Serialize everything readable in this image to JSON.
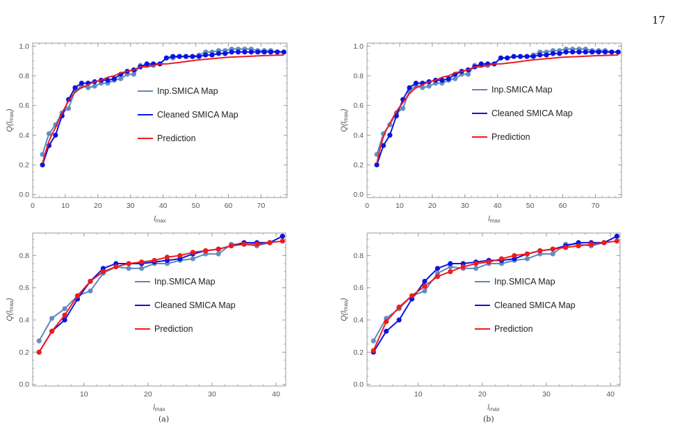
{
  "page": {
    "number": "17"
  },
  "caption": {
    "left_mark": "(a)",
    "right_mark": "(b)"
  },
  "colors": {
    "inp": "#5b86c0",
    "cleaned": "#0a14e0",
    "prediction": "#ef1b1b",
    "frame": "#9a9a9a"
  },
  "chart_data": [
    {
      "type": "line",
      "xlabel": "l",
      "xlabel_sub": "max",
      "ylabel": "Q(l",
      "ylabel_sub": "max",
      "ylabel_close": ")",
      "xlim": [
        0,
        78
      ],
      "ylim": [
        -0.02,
        1.02
      ],
      "xticks": [
        0,
        10,
        20,
        30,
        40,
        50,
        60,
        70
      ],
      "yticks": [
        0.0,
        0.2,
        0.4,
        0.6,
        0.8,
        1.0
      ],
      "ytick_labels": [
        "0.0",
        "0.2",
        "0.4",
        "0.6",
        "0.8",
        "1.0"
      ],
      "legend_position": "center-right",
      "markers": "points",
      "series": [
        {
          "name": "Inp.SMICA Map",
          "color_key": "inp",
          "x": [
            3,
            5,
            7,
            9,
            11,
            13,
            15,
            17,
            19,
            21,
            23,
            25,
            27,
            29,
            31,
            33,
            35,
            37,
            39,
            41,
            43,
            45,
            47,
            49,
            51,
            53,
            55,
            57,
            59,
            61,
            63,
            65,
            67,
            69,
            71,
            73,
            75,
            77
          ],
          "y": [
            0.27,
            0.41,
            0.47,
            0.55,
            0.58,
            0.7,
            0.73,
            0.72,
            0.73,
            0.75,
            0.75,
            0.77,
            0.78,
            0.81,
            0.81,
            0.87,
            0.87,
            0.87,
            0.88,
            0.92,
            0.92,
            0.93,
            0.93,
            0.93,
            0.94,
            0.96,
            0.96,
            0.97,
            0.97,
            0.98,
            0.98,
            0.98,
            0.98,
            0.97,
            0.97,
            0.97,
            0.96,
            0.96
          ]
        },
        {
          "name": "Cleaned SMICA Map",
          "color_key": "cleaned",
          "x": [
            3,
            5,
            7,
            9,
            11,
            13,
            15,
            17,
            19,
            21,
            23,
            25,
            27,
            29,
            31,
            33,
            35,
            37,
            39,
            41,
            43,
            45,
            47,
            49,
            51,
            53,
            55,
            57,
            59,
            61,
            63,
            65,
            67,
            69,
            71,
            73,
            75,
            77
          ],
          "y": [
            0.2,
            0.33,
            0.4,
            0.53,
            0.64,
            0.72,
            0.75,
            0.75,
            0.76,
            0.77,
            0.77,
            0.78,
            0.81,
            0.83,
            0.84,
            0.86,
            0.88,
            0.88,
            0.88,
            0.92,
            0.93,
            0.93,
            0.93,
            0.93,
            0.93,
            0.94,
            0.94,
            0.95,
            0.95,
            0.96,
            0.96,
            0.96,
            0.96,
            0.96,
            0.96,
            0.96,
            0.96,
            0.96
          ]
        },
        {
          "name": "Prediction",
          "color_key": "prediction",
          "markers": false,
          "x": [
            3,
            4,
            5,
            6,
            7,
            8,
            9,
            10,
            11,
            12,
            13,
            15,
            17,
            19,
            21,
            23,
            25,
            27,
            29,
            31,
            33,
            35,
            37,
            39,
            41,
            45,
            50,
            55,
            60,
            65,
            70,
            77
          ],
          "y": [
            0.21,
            0.29,
            0.36,
            0.41,
            0.45,
            0.5,
            0.55,
            0.59,
            0.63,
            0.66,
            0.69,
            0.72,
            0.74,
            0.76,
            0.77,
            0.79,
            0.8,
            0.82,
            0.83,
            0.84,
            0.86,
            0.86,
            0.87,
            0.88,
            0.88,
            0.89,
            0.905,
            0.915,
            0.925,
            0.93,
            0.935,
            0.94
          ]
        }
      ]
    },
    {
      "type": "line",
      "xlabel": "l",
      "xlabel_sub": "max",
      "ylabel": "Q(l",
      "ylabel_sub": "max",
      "ylabel_close": ")",
      "xlim": [
        0,
        78
      ],
      "ylim": [
        -0.02,
        1.02
      ],
      "xticks": [
        0,
        10,
        20,
        30,
        40,
        50,
        60,
        70
      ],
      "yticks": [
        0.0,
        0.2,
        0.4,
        0.6,
        0.8,
        1.0
      ],
      "ytick_labels": [
        "0.0",
        "0.2",
        "0.4",
        "0.6",
        "0.8",
        "1.0"
      ],
      "legend_position": "center-right",
      "markers": "points",
      "series": [
        {
          "name": "Inp.SMICA Map",
          "color_key": "inp",
          "x": [
            3,
            5,
            7,
            9,
            11,
            13,
            15,
            17,
            19,
            21,
            23,
            25,
            27,
            29,
            31,
            33,
            35,
            37,
            39,
            41,
            43,
            45,
            47,
            49,
            51,
            53,
            55,
            57,
            59,
            61,
            63,
            65,
            67,
            69,
            71,
            73,
            75,
            77
          ],
          "y": [
            0.27,
            0.41,
            0.47,
            0.55,
            0.58,
            0.7,
            0.73,
            0.72,
            0.73,
            0.75,
            0.75,
            0.77,
            0.78,
            0.81,
            0.81,
            0.87,
            0.87,
            0.87,
            0.88,
            0.92,
            0.92,
            0.93,
            0.93,
            0.93,
            0.94,
            0.96,
            0.96,
            0.97,
            0.97,
            0.98,
            0.98,
            0.98,
            0.98,
            0.97,
            0.97,
            0.97,
            0.96,
            0.96
          ]
        },
        {
          "name": "Cleaned SMICA Map",
          "color_key": "cleaned",
          "x": [
            3,
            5,
            7,
            9,
            11,
            13,
            15,
            17,
            19,
            21,
            23,
            25,
            27,
            29,
            31,
            33,
            35,
            37,
            39,
            41,
            43,
            45,
            47,
            49,
            51,
            53,
            55,
            57,
            59,
            61,
            63,
            65,
            67,
            69,
            71,
            73,
            75,
            77
          ],
          "y": [
            0.2,
            0.33,
            0.4,
            0.53,
            0.64,
            0.72,
            0.75,
            0.75,
            0.76,
            0.77,
            0.77,
            0.78,
            0.81,
            0.83,
            0.84,
            0.86,
            0.88,
            0.88,
            0.88,
            0.92,
            0.92,
            0.93,
            0.93,
            0.93,
            0.93,
            0.94,
            0.94,
            0.95,
            0.95,
            0.96,
            0.96,
            0.96,
            0.96,
            0.96,
            0.96,
            0.96,
            0.96,
            0.96
          ]
        },
        {
          "name": "Prediction",
          "color_key": "prediction",
          "markers": false,
          "x": [
            3,
            4,
            5,
            6,
            7,
            8,
            9,
            10,
            11,
            12,
            13,
            15,
            17,
            19,
            21,
            23,
            25,
            27,
            29,
            31,
            33,
            35,
            37,
            39,
            41,
            45,
            50,
            55,
            60,
            65,
            70,
            77
          ],
          "y": [
            0.21,
            0.31,
            0.39,
            0.44,
            0.48,
            0.52,
            0.56,
            0.59,
            0.62,
            0.65,
            0.68,
            0.72,
            0.74,
            0.76,
            0.77,
            0.79,
            0.8,
            0.82,
            0.83,
            0.84,
            0.86,
            0.86,
            0.87,
            0.88,
            0.88,
            0.89,
            0.905,
            0.915,
            0.925,
            0.93,
            0.935,
            0.94
          ]
        }
      ]
    },
    {
      "type": "line",
      "xlabel": "l",
      "xlabel_sub": "max",
      "ylabel": "Q(l",
      "ylabel_sub": "max",
      "ylabel_close": ")",
      "xlim": [
        2,
        41.5
      ],
      "ylim": [
        -0.01,
        0.94
      ],
      "xticks": [
        10,
        20,
        30,
        40
      ],
      "yticks": [
        0.0,
        0.2,
        0.4,
        0.6,
        0.8
      ],
      "ytick_labels": [
        "0.0",
        "0.2",
        "0.4",
        "0.6",
        "0.8"
      ],
      "legend_position": "center-right",
      "markers": "points",
      "series": [
        {
          "name": "Inp.SMICA Map",
          "color_key": "inp",
          "x": [
            3,
            5,
            7,
            9,
            11,
            13,
            15,
            17,
            19,
            21,
            23,
            25,
            27,
            29,
            31,
            33,
            35,
            37,
            39,
            41
          ],
          "y": [
            0.27,
            0.41,
            0.47,
            0.55,
            0.58,
            0.69,
            0.73,
            0.72,
            0.72,
            0.75,
            0.75,
            0.77,
            0.78,
            0.81,
            0.81,
            0.87,
            0.87,
            0.86,
            0.88,
            0.92
          ]
        },
        {
          "name": "Cleaned SMICA Map",
          "color_key": "cleaned",
          "x": [
            3,
            5,
            7,
            9,
            11,
            13,
            15,
            17,
            19,
            21,
            23,
            25,
            27,
            29,
            31,
            33,
            35,
            37,
            39,
            41
          ],
          "y": [
            0.2,
            0.33,
            0.4,
            0.53,
            0.64,
            0.72,
            0.75,
            0.75,
            0.75,
            0.76,
            0.77,
            0.78,
            0.81,
            0.83,
            0.84,
            0.86,
            0.88,
            0.88,
            0.88,
            0.92
          ]
        },
        {
          "name": "Prediction",
          "color_key": "prediction",
          "markers": "points",
          "x": [
            3,
            5,
            7,
            9,
            11,
            13,
            15,
            17,
            19,
            21,
            23,
            25,
            27,
            29,
            31,
            33,
            35,
            37,
            39,
            41
          ],
          "y": [
            0.2,
            0.33,
            0.43,
            0.55,
            0.64,
            0.7,
            0.73,
            0.75,
            0.76,
            0.77,
            0.79,
            0.8,
            0.82,
            0.83,
            0.84,
            0.86,
            0.87,
            0.87,
            0.88,
            0.89
          ]
        }
      ]
    },
    {
      "type": "line",
      "xlabel": "l",
      "xlabel_sub": "max",
      "ylabel": "Q(l",
      "ylabel_sub": "max",
      "ylabel_close": ")",
      "xlim": [
        2,
        41.5
      ],
      "ylim": [
        -0.01,
        0.94
      ],
      "xticks": [
        10,
        20,
        30,
        40
      ],
      "yticks": [
        0.0,
        0.2,
        0.4,
        0.6,
        0.8
      ],
      "ytick_labels": [
        "0.0",
        "0.2",
        "0.4",
        "0.6",
        "0.8"
      ],
      "legend_position": "center-right",
      "markers": "points",
      "series": [
        {
          "name": "Inp.SMICA Map",
          "color_key": "inp",
          "x": [
            3,
            5,
            7,
            9,
            11,
            13,
            15,
            17,
            19,
            21,
            23,
            25,
            27,
            29,
            31,
            33,
            35,
            37,
            39,
            41
          ],
          "y": [
            0.27,
            0.41,
            0.47,
            0.55,
            0.58,
            0.69,
            0.73,
            0.72,
            0.72,
            0.75,
            0.75,
            0.77,
            0.78,
            0.81,
            0.81,
            0.87,
            0.87,
            0.86,
            0.88,
            0.92
          ]
        },
        {
          "name": "Cleaned SMICA Map",
          "color_key": "cleaned",
          "x": [
            3,
            5,
            7,
            9,
            11,
            13,
            15,
            17,
            19,
            21,
            23,
            25,
            27,
            29,
            31,
            33,
            35,
            37,
            39,
            41
          ],
          "y": [
            0.2,
            0.33,
            0.4,
            0.53,
            0.64,
            0.72,
            0.75,
            0.75,
            0.76,
            0.77,
            0.77,
            0.78,
            0.81,
            0.83,
            0.84,
            0.86,
            0.88,
            0.88,
            0.88,
            0.92
          ]
        },
        {
          "name": "Prediction",
          "color_key": "prediction",
          "markers": "points",
          "x": [
            3,
            5,
            7,
            9,
            11,
            13,
            15,
            17,
            19,
            21,
            23,
            25,
            27,
            29,
            31,
            33,
            35,
            37,
            39,
            41
          ],
          "y": [
            0.21,
            0.39,
            0.48,
            0.55,
            0.61,
            0.67,
            0.7,
            0.73,
            0.75,
            0.76,
            0.78,
            0.8,
            0.81,
            0.83,
            0.84,
            0.85,
            0.86,
            0.87,
            0.88,
            0.89
          ]
        }
      ]
    }
  ]
}
